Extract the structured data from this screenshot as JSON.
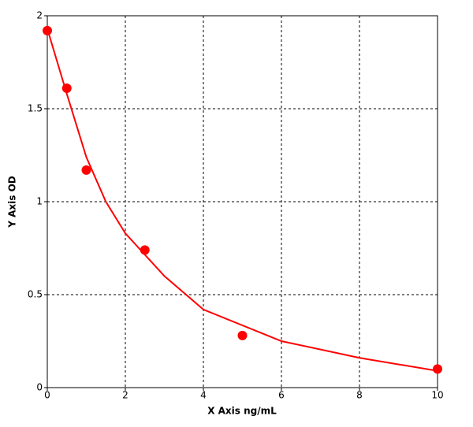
{
  "chart_data": {
    "type": "scatter",
    "x_label": "X Axis ng/mL",
    "y_label": "Y Axis OD",
    "xlim": [
      0,
      10
    ],
    "xticks": [
      0,
      2,
      4,
      6,
      8,
      10
    ],
    "ylim": [
      0,
      2
    ],
    "yticks": [
      0,
      0.5,
      1,
      1.5,
      2
    ],
    "grid": true,
    "series": [
      {
        "color": "#ff0000",
        "marker": "circle",
        "x": [
          0,
          0.5,
          1,
          2.5,
          5,
          10
        ],
        "values": [
          1.92,
          1.61,
          1.17,
          0.74,
          0.28,
          0.1
        ]
      },
      {
        "color": "#ff0000",
        "line": true,
        "x": [
          0,
          0.5,
          1,
          1.5,
          2,
          3,
          4,
          6,
          8,
          10
        ],
        "values": [
          1.93,
          1.58,
          1.24,
          1.0,
          0.83,
          0.6,
          0.42,
          0.25,
          0.16,
          0.09
        ]
      }
    ]
  }
}
